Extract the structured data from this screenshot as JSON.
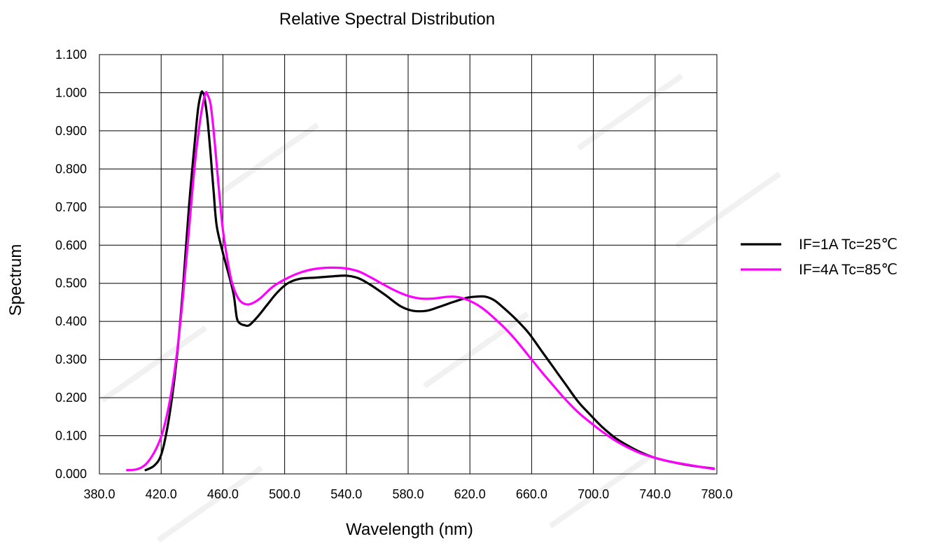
{
  "chart_data": {
    "type": "line",
    "title": "Relative Spectral Distribution",
    "xlabel": "Wavelength (nm)",
    "ylabel": "Spectrum",
    "xlim": [
      380,
      780
    ],
    "ylim": [
      0,
      1.1
    ],
    "x_ticks": [
      "380.0",
      "420.0",
      "460.0",
      "500.0",
      "540.0",
      "580.0",
      "620.0",
      "660.0",
      "700.0",
      "740.0",
      "780.0"
    ],
    "y_ticks": [
      "0.000",
      "0.100",
      "0.200",
      "0.300",
      "0.400",
      "0.500",
      "0.600",
      "0.700",
      "0.800",
      "0.900",
      "1.000",
      "1.100"
    ],
    "grid": true,
    "legend_position": "right",
    "series": [
      {
        "name": "IF=1A Tc=25℃",
        "color": "#000000",
        "points": [
          [
            410,
            0.01
          ],
          [
            415,
            0.02
          ],
          [
            419,
            0.04
          ],
          [
            422,
            0.08
          ],
          [
            426,
            0.17
          ],
          [
            430,
            0.3
          ],
          [
            434,
            0.48
          ],
          [
            438,
            0.7
          ],
          [
            442,
            0.88
          ],
          [
            444,
            0.96
          ],
          [
            446,
            1.0
          ],
          [
            447,
            1.0
          ],
          [
            448,
            0.99
          ],
          [
            450,
            0.93
          ],
          [
            452,
            0.84
          ],
          [
            454,
            0.74
          ],
          [
            456,
            0.65
          ],
          [
            460,
            0.58
          ],
          [
            464,
            0.52
          ],
          [
            467,
            0.47
          ],
          [
            469,
            0.41
          ],
          [
            471,
            0.395
          ],
          [
            474,
            0.39
          ],
          [
            477,
            0.39
          ],
          [
            482,
            0.41
          ],
          [
            488,
            0.44
          ],
          [
            495,
            0.475
          ],
          [
            502,
            0.5
          ],
          [
            510,
            0.512
          ],
          [
            520,
            0.515
          ],
          [
            530,
            0.518
          ],
          [
            540,
            0.52
          ],
          [
            548,
            0.513
          ],
          [
            556,
            0.495
          ],
          [
            565,
            0.47
          ],
          [
            575,
            0.44
          ],
          [
            583,
            0.428
          ],
          [
            592,
            0.428
          ],
          [
            600,
            0.438
          ],
          [
            610,
            0.452
          ],
          [
            618,
            0.462
          ],
          [
            624,
            0.465
          ],
          [
            630,
            0.465
          ],
          [
            636,
            0.455
          ],
          [
            642,
            0.435
          ],
          [
            650,
            0.405
          ],
          [
            658,
            0.37
          ],
          [
            666,
            0.325
          ],
          [
            674,
            0.28
          ],
          [
            682,
            0.235
          ],
          [
            690,
            0.19
          ],
          [
            698,
            0.155
          ],
          [
            706,
            0.122
          ],
          [
            714,
            0.095
          ],
          [
            722,
            0.075
          ],
          [
            730,
            0.058
          ],
          [
            740,
            0.042
          ],
          [
            750,
            0.032
          ],
          [
            760,
            0.024
          ],
          [
            770,
            0.018
          ],
          [
            778,
            0.014
          ]
        ]
      },
      {
        "name": "IF=4A Tc=85℃",
        "color": "#ff00ff",
        "points": [
          [
            398,
            0.01
          ],
          [
            404,
            0.012
          ],
          [
            410,
            0.025
          ],
          [
            416,
            0.06
          ],
          [
            421,
            0.11
          ],
          [
            426,
            0.2
          ],
          [
            430,
            0.31
          ],
          [
            434,
            0.46
          ],
          [
            438,
            0.64
          ],
          [
            442,
            0.82
          ],
          [
            445,
            0.92
          ],
          [
            447,
            0.97
          ],
          [
            449,
            1.0
          ],
          [
            450,
            0.995
          ],
          [
            452,
            0.97
          ],
          [
            454,
            0.9
          ],
          [
            456,
            0.81
          ],
          [
            458,
            0.72
          ],
          [
            460,
            0.64
          ],
          [
            463,
            0.56
          ],
          [
            466,
            0.5
          ],
          [
            470,
            0.46
          ],
          [
            474,
            0.446
          ],
          [
            478,
            0.446
          ],
          [
            484,
            0.46
          ],
          [
            492,
            0.49
          ],
          [
            500,
            0.51
          ],
          [
            510,
            0.528
          ],
          [
            520,
            0.538
          ],
          [
            530,
            0.541
          ],
          [
            540,
            0.539
          ],
          [
            548,
            0.531
          ],
          [
            556,
            0.515
          ],
          [
            564,
            0.497
          ],
          [
            572,
            0.48
          ],
          [
            580,
            0.467
          ],
          [
            588,
            0.46
          ],
          [
            596,
            0.46
          ],
          [
            604,
            0.464
          ],
          [
            610,
            0.465
          ],
          [
            616,
            0.46
          ],
          [
            622,
            0.45
          ],
          [
            628,
            0.435
          ],
          [
            634,
            0.415
          ],
          [
            642,
            0.385
          ],
          [
            650,
            0.35
          ],
          [
            658,
            0.31
          ],
          [
            666,
            0.27
          ],
          [
            674,
            0.232
          ],
          [
            682,
            0.195
          ],
          [
            690,
            0.162
          ],
          [
            698,
            0.135
          ],
          [
            706,
            0.11
          ],
          [
            714,
            0.088
          ],
          [
            722,
            0.07
          ],
          [
            730,
            0.055
          ],
          [
            740,
            0.042
          ],
          [
            750,
            0.032
          ],
          [
            760,
            0.025
          ],
          [
            770,
            0.018
          ],
          [
            778,
            0.013
          ]
        ]
      }
    ]
  }
}
